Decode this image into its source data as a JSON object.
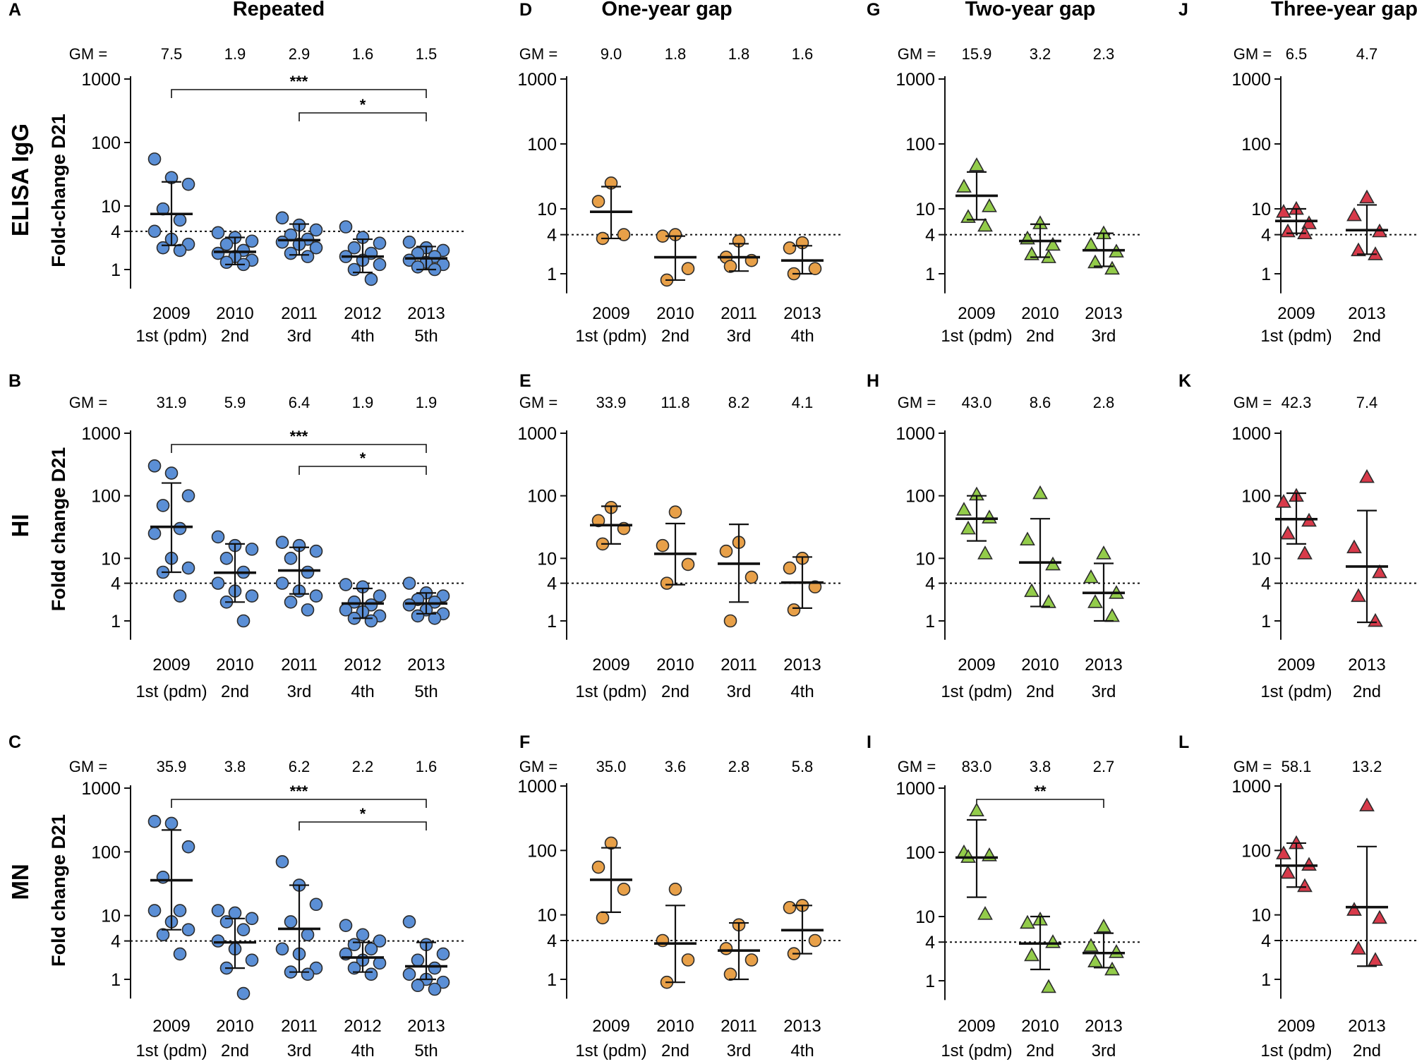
{
  "colors": {
    "repeated": "#5b8fd6",
    "one_year_gap": "#e8a048",
    "two_year_gap": "#93cc4a",
    "three_year_gap": "#d83a4a",
    "marker_edge": "#2b2b2b"
  },
  "row_labels": [
    "ELISA IgG",
    "HI",
    "MN"
  ],
  "column_titles": [
    "Repeated",
    "One-year gap",
    "Two-year gap",
    "Three-year gap"
  ],
  "gm_prefix": "GM =",
  "chart_data": [
    {
      "panel": "A",
      "type": "scatter",
      "group": "Repeated",
      "assay": "ELISA IgG",
      "title": "Repeated",
      "ylabel": "Fold-change D21",
      "yscale": "log",
      "ylim": [
        0.5,
        1000
      ],
      "yticks": [
        "1",
        "4",
        "10",
        "100",
        "1000"
      ],
      "threshold": 4,
      "categories": [
        "2009",
        "2010",
        "2011",
        "2012",
        "2013"
      ],
      "sublabels": [
        "1st (pdm)",
        "2nd",
        "3rd",
        "4th",
        "5th"
      ],
      "gm": [
        "7.5",
        "1.9",
        "2.9",
        "1.6",
        "1.5"
      ],
      "means": [
        7.5,
        1.9,
        2.9,
        1.6,
        1.5
      ],
      "ci": [
        [
          2.4,
          24
        ],
        [
          1.2,
          3.2
        ],
        [
          1.7,
          5.2
        ],
        [
          0.9,
          3.0
        ],
        [
          1.0,
          2.3
        ]
      ],
      "points": [
        [
          55,
          28,
          22,
          9,
          6,
          4,
          3,
          2.5,
          2.2,
          2.0
        ],
        [
          3.8,
          3.2,
          2.8,
          2.5,
          2.0,
          1.8,
          1.6,
          1.4,
          1.3,
          1.2
        ],
        [
          6.5,
          5.0,
          4.2,
          3.5,
          3.0,
          2.7,
          2.5,
          2.2,
          1.8,
          1.6
        ],
        [
          4.7,
          3.2,
          2.6,
          2.2,
          1.8,
          1.6,
          1.4,
          1.2,
          1.0,
          0.7
        ],
        [
          2.7,
          2.2,
          2.0,
          1.8,
          1.6,
          1.4,
          1.3,
          1.2,
          1.1,
          1.0
        ]
      ],
      "marker": "circle",
      "brackets": [
        {
          "from": 0,
          "to": 4,
          "label": "***"
        },
        {
          "from": 2,
          "to": 4,
          "label": "*"
        }
      ]
    },
    {
      "panel": "D",
      "type": "scatter",
      "group": "One-year gap",
      "assay": "ELISA IgG",
      "title": "One-year gap",
      "ylabel": "",
      "yscale": "log",
      "ylim": [
        0.5,
        1000
      ],
      "yticks": [
        "1",
        "4",
        "10",
        "100",
        "1000"
      ],
      "threshold": 4,
      "categories": [
        "2009",
        "2010",
        "2011",
        "2013"
      ],
      "sublabels": [
        "1st (pdm)",
        "2nd",
        "3rd",
        "4th"
      ],
      "gm": [
        "9.0",
        "1.8",
        "1.8",
        "1.6"
      ],
      "means": [
        9.0,
        1.8,
        1.8,
        1.6
      ],
      "ci": [
        [
          3.5,
          22
        ],
        [
          0.8,
          3.8
        ],
        [
          1.1,
          2.9
        ],
        [
          1.0,
          2.7
        ]
      ],
      "points": [
        [
          25,
          13,
          4,
          3.5
        ],
        [
          4,
          3.8,
          1.2,
          0.8
        ],
        [
          3.2,
          1.8,
          1.6,
          1.3
        ],
        [
          3.0,
          2.5,
          1.2,
          1.0
        ]
      ],
      "marker": "circle",
      "brackets": []
    },
    {
      "panel": "G",
      "type": "scatter",
      "group": "Two-year gap",
      "assay": "ELISA IgG",
      "title": "Two-year gap",
      "ylabel": "",
      "yscale": "log",
      "ylim": [
        0.5,
        1000
      ],
      "yticks": [
        "1",
        "4",
        "10",
        "100",
        "1000"
      ],
      "threshold": 4,
      "categories": [
        "2009",
        "2010",
        "2013"
      ],
      "sublabels": [
        "1st (pdm)",
        "2nd",
        "3rd"
      ],
      "gm": [
        "15.9",
        "3.2",
        "2.3"
      ],
      "means": [
        15.9,
        3.2,
        2.3
      ],
      "ci": [
        [
          6.8,
          37
        ],
        [
          1.8,
          5.8
        ],
        [
          1.3,
          4.2
        ]
      ],
      "points": [
        [
          47,
          22,
          11,
          7.5,
          5.5
        ],
        [
          6,
          3.5,
          2.8,
          2.0,
          1.8
        ],
        [
          4.2,
          2.8,
          2.2,
          1.5,
          1.2
        ]
      ],
      "marker": "triangle",
      "brackets": []
    },
    {
      "panel": "J",
      "type": "scatter",
      "group": "Three-year gap",
      "assay": "ELISA IgG",
      "title": "Three-year gap",
      "ylabel": "",
      "yscale": "log",
      "ylim": [
        0.5,
        1000
      ],
      "yticks": [
        "1",
        "4",
        "10",
        "100",
        "1000"
      ],
      "threshold": 4,
      "categories": [
        "2009",
        "2013"
      ],
      "sublabels": [
        "1st (pdm)",
        "2nd"
      ],
      "gm": [
        "6.5",
        "4.7"
      ],
      "means": [
        6.5,
        4.7
      ],
      "ci": [
        [
          4.2,
          10
        ],
        [
          2.0,
          11.5
        ]
      ],
      "points": [
        [
          10,
          9,
          6,
          4.5,
          4.2
        ],
        [
          15,
          8,
          4.5,
          2.3,
          2.0
        ]
      ],
      "marker": "triangle",
      "brackets": []
    },
    {
      "panel": "B",
      "type": "scatter",
      "group": "Repeated",
      "assay": "HI",
      "title": "",
      "ylabel": "Foldd change D21",
      "yscale": "log",
      "ylim": [
        0.5,
        1000
      ],
      "yticks": [
        "1",
        "4",
        "10",
        "100",
        "1000"
      ],
      "threshold": 4,
      "categories": [
        "2009",
        "2010",
        "2011",
        "2012",
        "2013"
      ],
      "sublabels": [
        "1st (pdm)",
        "2nd",
        "3rd",
        "4th",
        "5th"
      ],
      "gm": [
        "31.9",
        "5.9",
        "6.4",
        "1.9",
        "1.9"
      ],
      "means": [
        31.9,
        5.9,
        6.4,
        1.9,
        1.9
      ],
      "ci": [
        [
          6,
          160
        ],
        [
          2.0,
          17
        ],
        [
          2.7,
          15
        ],
        [
          1.1,
          3.3
        ],
        [
          1.3,
          2.8
        ]
      ],
      "points": [
        [
          300,
          230,
          100,
          70,
          30,
          25,
          10,
          7,
          6,
          2.5
        ],
        [
          22,
          16,
          14,
          10,
          6,
          4,
          3,
          2.5,
          2.0,
          1.0
        ],
        [
          18,
          16,
          13,
          10,
          6,
          4,
          3,
          2.5,
          2.0,
          1.5
        ],
        [
          3.8,
          3.5,
          2.5,
          2.0,
          1.8,
          1.5,
          1.4,
          1.2,
          1.1,
          1.0
        ],
        [
          4,
          2.8,
          2.5,
          2.2,
          2.0,
          1.8,
          1.5,
          1.3,
          1.2,
          1.1
        ]
      ],
      "marker": "circle",
      "brackets": [
        {
          "from": 0,
          "to": 4,
          "label": "***"
        },
        {
          "from": 2,
          "to": 4,
          "label": "*"
        }
      ]
    },
    {
      "panel": "E",
      "type": "scatter",
      "group": "One-year gap",
      "assay": "HI",
      "title": "",
      "ylabel": "",
      "yscale": "log",
      "ylim": [
        0.5,
        1000
      ],
      "yticks": [
        "1",
        "4",
        "10",
        "100",
        "1000"
      ],
      "threshold": 4,
      "categories": [
        "2009",
        "2010",
        "2011",
        "2013"
      ],
      "sublabels": [
        "1st (pdm)",
        "2nd",
        "3rd",
        "4th"
      ],
      "gm": [
        "33.9",
        "11.8",
        "8.2",
        "4.1"
      ],
      "means": [
        33.9,
        11.8,
        8.2,
        4.1
      ],
      "ci": [
        [
          17,
          68
        ],
        [
          3.8,
          36
        ],
        [
          2.0,
          35
        ],
        [
          1.6,
          10.5
        ]
      ],
      "points": [
        [
          65,
          40,
          30,
          17
        ],
        [
          55,
          16,
          8,
          4
        ],
        [
          18,
          13,
          5,
          1.0
        ],
        [
          10,
          7,
          3.5,
          1.5
        ]
      ],
      "marker": "circle",
      "brackets": []
    },
    {
      "panel": "H",
      "type": "scatter",
      "group": "Two-year gap",
      "assay": "HI",
      "title": "",
      "ylabel": "",
      "yscale": "log",
      "ylim": [
        0.5,
        1000
      ],
      "yticks": [
        "1",
        "4",
        "10",
        "100",
        "1000"
      ],
      "threshold": 4,
      "categories": [
        "2009",
        "2010",
        "2013"
      ],
      "sublabels": [
        "1st (pdm)",
        "2nd",
        "3rd"
      ],
      "gm": [
        "43.0",
        "8.6",
        "2.8"
      ],
      "means": [
        43.0,
        8.6,
        2.8
      ],
      "ci": [
        [
          19,
          100
        ],
        [
          1.7,
          43
        ],
        [
          1.0,
          8.3
        ]
      ],
      "points": [
        [
          105,
          60,
          45,
          30,
          12
        ],
        [
          110,
          20,
          8,
          3,
          2.0
        ],
        [
          12,
          5,
          2.8,
          2.0,
          1.2
        ]
      ],
      "marker": "triangle",
      "brackets": []
    },
    {
      "panel": "K",
      "type": "scatter",
      "group": "Three-year gap",
      "assay": "HI",
      "title": "",
      "ylabel": "",
      "yscale": "log",
      "ylim": [
        0.5,
        1000
      ],
      "yticks": [
        "1",
        "4",
        "10",
        "100",
        "1000"
      ],
      "threshold": 4,
      "categories": [
        "2009",
        "2013"
      ],
      "sublabels": [
        "1st (pdm)",
        "2nd"
      ],
      "gm": [
        "42.3",
        "7.4"
      ],
      "means": [
        42.3,
        7.4
      ],
      "ci": [
        [
          17,
          110
        ],
        [
          0.95,
          58
        ]
      ],
      "points": [
        [
          100,
          80,
          40,
          25,
          12
        ],
        [
          200,
          15,
          6,
          2.5,
          1.0
        ]
      ],
      "marker": "triangle",
      "brackets": []
    },
    {
      "panel": "C",
      "type": "scatter",
      "group": "Repeated",
      "assay": "MN",
      "title": "",
      "ylabel": "Fold change D21",
      "yscale": "log",
      "ylim": [
        0.5,
        1000
      ],
      "yticks": [
        "1",
        "4",
        "10",
        "100",
        "1000"
      ],
      "threshold": 4,
      "categories": [
        "2009",
        "2010",
        "2011",
        "2012",
        "2013"
      ],
      "sublabels": [
        "1st (pdm)",
        "2nd",
        "3rd",
        "4th",
        "5th"
      ],
      "gm": [
        "35.9",
        "3.8",
        "6.2",
        "2.2",
        "1.6"
      ],
      "means": [
        35.9,
        3.8,
        6.2,
        2.2,
        1.6
      ],
      "ci": [
        [
          6,
          220
        ],
        [
          1.5,
          9
        ],
        [
          1.3,
          30
        ],
        [
          1.3,
          3.8
        ],
        [
          1.0,
          3.8
        ]
      ],
      "points": [
        [
          300,
          280,
          120,
          40,
          12,
          12,
          8,
          6,
          5,
          2.5
        ],
        [
          12,
          11,
          9,
          8,
          6,
          4,
          3,
          2,
          1.5,
          0.6
        ],
        [
          70,
          30,
          15,
          8,
          5,
          3,
          2.5,
          1.5,
          1.3,
          1.2
        ],
        [
          7,
          5,
          4,
          3.5,
          3,
          2.5,
          2,
          1.8,
          1.5,
          1.2
        ],
        [
          8,
          3.5,
          2.5,
          2,
          1.5,
          1.2,
          1.0,
          0.9,
          0.8,
          0.7
        ]
      ],
      "marker": "circle",
      "brackets": [
        {
          "from": 0,
          "to": 4,
          "label": "***"
        },
        {
          "from": 2,
          "to": 4,
          "label": "*"
        }
      ]
    },
    {
      "panel": "F",
      "type": "scatter",
      "group": "One-year gap",
      "assay": "MN",
      "title": "",
      "ylabel": "",
      "yscale": "log",
      "ylim": [
        0.5,
        1000
      ],
      "yticks": [
        "1",
        "4",
        "10",
        "100",
        "1000"
      ],
      "threshold": 4,
      "categories": [
        "2009",
        "2010",
        "2011",
        "2013"
      ],
      "sublabels": [
        "1st (pdm)",
        "2nd",
        "3rd",
        "4th"
      ],
      "gm": [
        "35.0",
        "3.6",
        "2.8",
        "5.8"
      ],
      "means": [
        35.0,
        3.6,
        2.8,
        5.8
      ],
      "ci": [
        [
          11,
          110
        ],
        [
          0.9,
          14
        ],
        [
          1.0,
          7.5
        ],
        [
          2.5,
          14
        ]
      ],
      "points": [
        [
          130,
          55,
          25,
          9
        ],
        [
          25,
          4,
          2,
          0.9
        ],
        [
          7,
          3,
          2,
          1.2
        ],
        [
          14,
          13,
          4,
          2.5
        ]
      ],
      "marker": "circle",
      "brackets": []
    },
    {
      "panel": "I",
      "type": "scatter",
      "group": "Two-year gap",
      "assay": "MN",
      "title": "",
      "ylabel": "",
      "yscale": "log",
      "ylim": [
        0.5,
        1000
      ],
      "yticks": [
        "1",
        "4",
        "10",
        "100",
        "1000"
      ],
      "threshold": 4,
      "categories": [
        "2009",
        "2010",
        "2013"
      ],
      "sublabels": [
        "1st (pdm)",
        "2nd",
        "3rd"
      ],
      "gm": [
        "83.0",
        "3.8",
        "2.7"
      ],
      "means": [
        83.0,
        3.8,
        2.7
      ],
      "ci": [
        [
          20,
          320
        ],
        [
          1.5,
          10
        ],
        [
          1.6,
          5.5
        ]
      ],
      "points": [
        [
          450,
          100,
          90,
          85,
          11
        ],
        [
          9,
          8,
          4,
          2.5,
          0.8
        ],
        [
          7,
          3.5,
          2.8,
          2.0,
          1.5
        ]
      ],
      "marker": "triangle",
      "brackets": [
        {
          "from": 0,
          "to": 2,
          "label": "**"
        }
      ]
    },
    {
      "panel": "L",
      "type": "scatter",
      "group": "Three-year gap",
      "assay": "MN",
      "title": "",
      "ylabel": "",
      "yscale": "log",
      "ylim": [
        0.5,
        1000
      ],
      "yticks": [
        "1",
        "4",
        "10",
        "100",
        "1000"
      ],
      "threshold": 4,
      "categories": [
        "2009",
        "2013"
      ],
      "sublabels": [
        "1st (pdm)",
        "2nd"
      ],
      "gm": [
        "58.1",
        "13.2"
      ],
      "means": [
        58.1,
        13.2
      ],
      "ci": [
        [
          27,
          130
        ],
        [
          1.6,
          115
        ]
      ],
      "points": [
        [
          130,
          90,
          60,
          45,
          28
        ],
        [
          500,
          12,
          9,
          3,
          2.0
        ]
      ],
      "marker": "triangle",
      "brackets": []
    }
  ]
}
